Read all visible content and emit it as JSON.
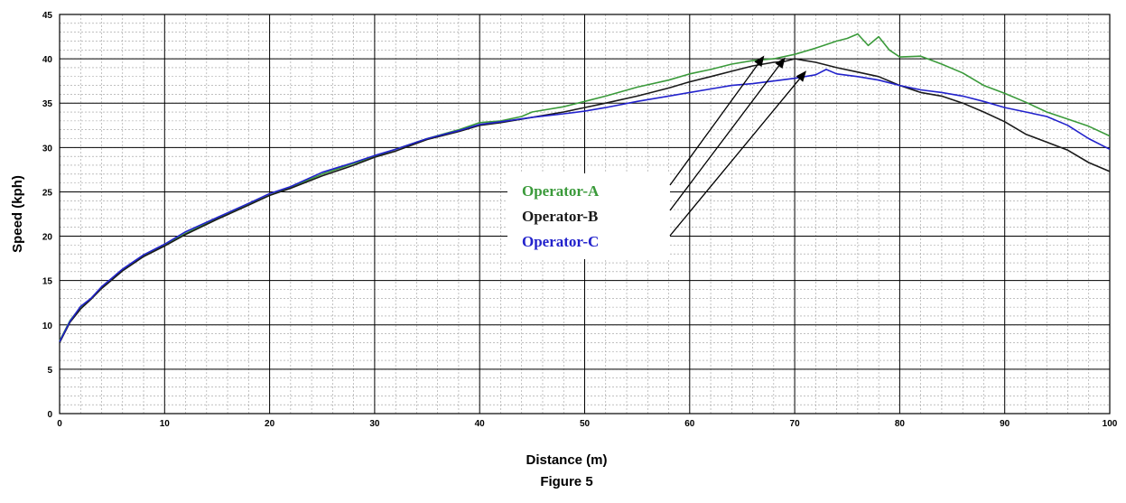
{
  "chart_data": {
    "type": "line",
    "title": "",
    "caption": "Figure 5",
    "xlabel": "Distance (m)",
    "ylabel": "Speed (kph)",
    "xlim": [
      0,
      100
    ],
    "ylim": [
      0,
      45
    ],
    "x_ticks": [
      0,
      10,
      20,
      30,
      40,
      50,
      60,
      70,
      80,
      90,
      100
    ],
    "y_ticks": [
      0,
      5,
      10,
      15,
      20,
      25,
      30,
      35,
      40,
      45
    ],
    "grid": true,
    "minor_grid": true,
    "legend_position": "center-right",
    "series": [
      {
        "name": "Operator-A",
        "color": "#3a9a3a",
        "x": [
          0,
          1,
          2,
          3,
          4,
          5,
          6,
          8,
          10,
          12,
          15,
          18,
          20,
          22,
          25,
          28,
          30,
          32,
          35,
          38,
          40,
          42,
          44,
          45,
          48,
          50,
          52,
          55,
          58,
          60,
          62,
          64,
          66,
          68,
          70,
          72,
          74,
          75,
          76,
          77,
          78,
          79,
          80,
          82,
          84,
          86,
          88,
          90,
          92,
          94,
          96,
          98,
          100
        ],
        "y": [
          8.2,
          10.5,
          12.0,
          13.0,
          14.2,
          15.2,
          16.2,
          17.8,
          19.0,
          20.3,
          22.0,
          23.6,
          24.6,
          25.5,
          27.0,
          28.2,
          29.0,
          29.8,
          31.0,
          32.0,
          32.8,
          33.0,
          33.5,
          34.0,
          34.6,
          35.2,
          35.8,
          36.8,
          37.6,
          38.3,
          38.8,
          39.4,
          39.8,
          40.0,
          40.5,
          41.2,
          42.0,
          42.3,
          42.8,
          41.5,
          42.5,
          41.0,
          40.2,
          40.3,
          39.4,
          38.4,
          37.0,
          36.1,
          35.1,
          34.0,
          33.2,
          32.4,
          31.3
        ]
      },
      {
        "name": "Operator-B",
        "color": "#1a1a1a",
        "x": [
          0,
          1,
          2,
          3,
          4,
          5,
          6,
          8,
          10,
          12,
          15,
          18,
          20,
          22,
          25,
          28,
          30,
          32,
          35,
          38,
          40,
          42,
          45,
          48,
          50,
          52,
          55,
          58,
          60,
          62,
          64,
          66,
          68,
          69,
          70,
          71,
          72,
          74,
          76,
          78,
          80,
          82,
          84,
          86,
          88,
          90,
          92,
          94,
          96,
          98,
          100
        ],
        "y": [
          8.0,
          10.3,
          11.8,
          12.9,
          14.1,
          15.1,
          16.1,
          17.7,
          18.9,
          20.2,
          21.9,
          23.5,
          24.6,
          25.4,
          26.8,
          28.0,
          28.9,
          29.6,
          30.9,
          31.8,
          32.5,
          32.8,
          33.4,
          34.0,
          34.5,
          35.0,
          35.8,
          36.7,
          37.4,
          38.0,
          38.6,
          39.2,
          39.6,
          39.7,
          40.0,
          39.8,
          39.6,
          39.0,
          38.5,
          38.0,
          37.0,
          36.2,
          35.8,
          35.0,
          34.0,
          32.9,
          31.5,
          30.6,
          29.7,
          28.3,
          27.3
        ]
      },
      {
        "name": "Operator-C",
        "color": "#2222cc",
        "x": [
          0,
          1,
          2,
          3,
          4,
          5,
          6,
          8,
          10,
          12,
          15,
          18,
          20,
          22,
          25,
          28,
          30,
          32,
          35,
          38,
          40,
          42,
          45,
          48,
          50,
          52,
          55,
          58,
          60,
          62,
          64,
          66,
          68,
          70,
          72,
          73,
          74,
          76,
          78,
          80,
          82,
          84,
          86,
          88,
          90,
          92,
          94,
          96,
          98,
          100
        ],
        "y": [
          8.1,
          10.4,
          12.1,
          13.0,
          14.3,
          15.3,
          16.3,
          17.9,
          19.1,
          20.5,
          22.1,
          23.7,
          24.8,
          25.6,
          27.2,
          28.3,
          29.1,
          29.8,
          31.0,
          31.9,
          32.6,
          32.9,
          33.4,
          33.8,
          34.1,
          34.5,
          35.2,
          35.8,
          36.2,
          36.6,
          37.0,
          37.2,
          37.5,
          37.8,
          38.2,
          38.8,
          38.3,
          38.0,
          37.6,
          37.0,
          36.5,
          36.2,
          35.8,
          35.2,
          34.5,
          34.0,
          33.5,
          32.5,
          31.0,
          29.8
        ]
      }
    ],
    "legend": [
      {
        "label": "Operator-A",
        "color": "#3a9a3a"
      },
      {
        "label": "Operator-B",
        "color": "#1a1a1a"
      },
      {
        "label": "Operator-C",
        "color": "#2222cc"
      }
    ]
  }
}
